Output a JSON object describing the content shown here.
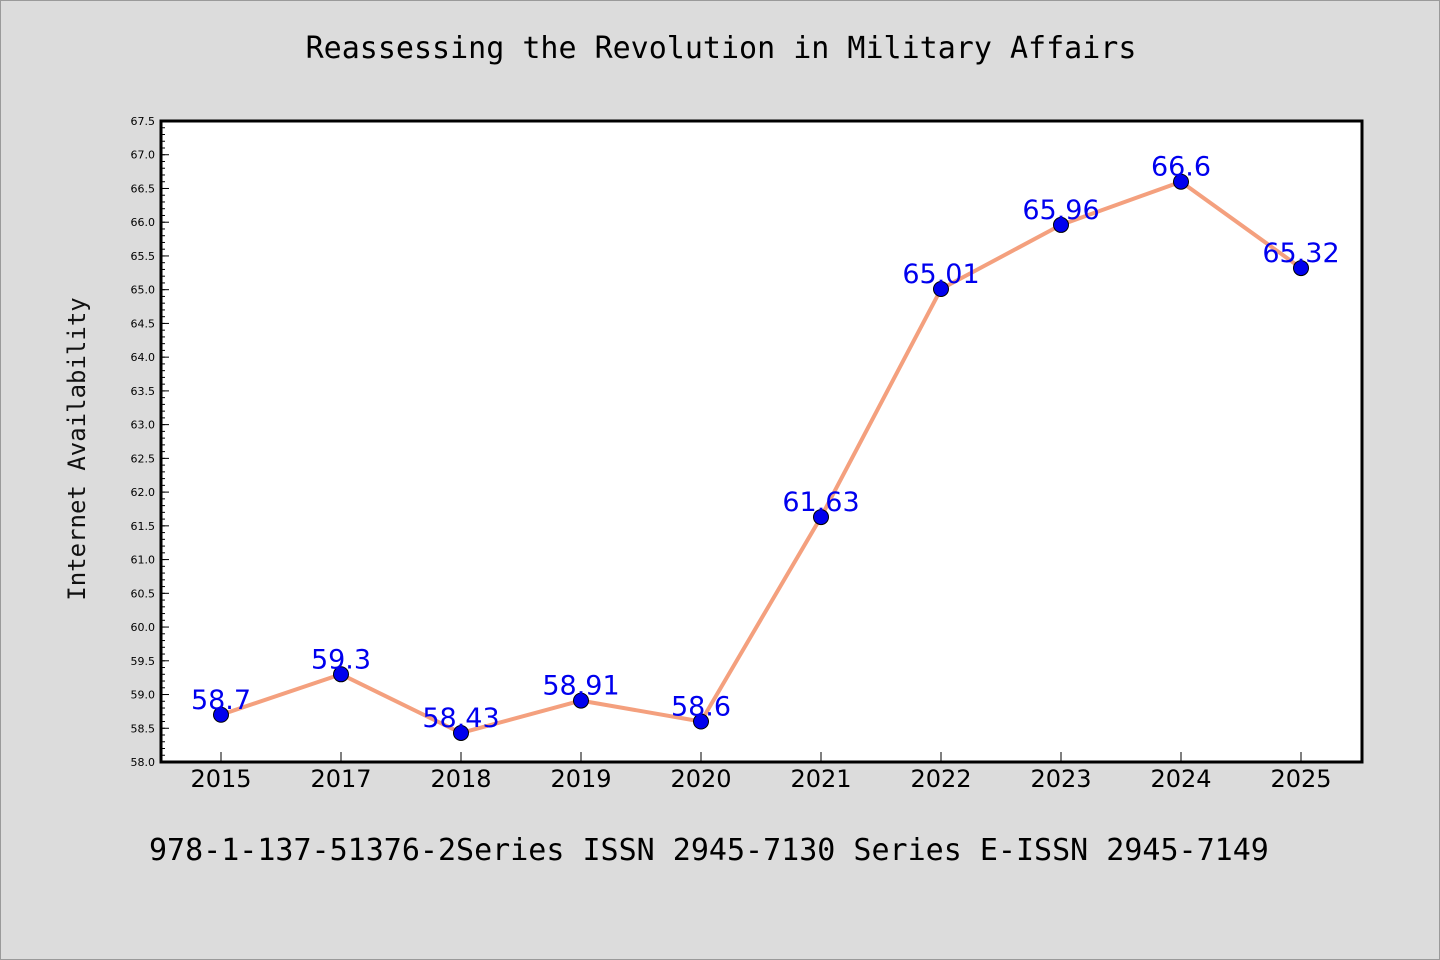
{
  "chart_data": {
    "type": "line",
    "title": "Reassessing the Revolution in Military Affairs",
    "xlabel": "",
    "ylabel": "Internet Availability",
    "categories": [
      "2015",
      "2017",
      "2018",
      "2019",
      "2020",
      "2021",
      "2022",
      "2023",
      "2024",
      "2025"
    ],
    "series": [
      {
        "values": [
          58.7,
          59.3,
          58.43,
          58.91,
          58.6,
          61.63,
          65.01,
          65.96,
          66.6,
          65.32
        ],
        "data_labels": [
          "58.7",
          "59.3",
          "58.43",
          "58.91",
          "58.6",
          "61.63",
          "65.01",
          "65.96",
          "66.6",
          "65.32"
        ],
        "line_color": "#f4a07e",
        "marker_color": "#0000ee"
      }
    ],
    "ylim": [
      58.0,
      67.5
    ],
    "yticks": [
      "58.0",
      "58.5",
      "59.0",
      "59.5",
      "60.0",
      "60.5",
      "61.0",
      "61.5",
      "62.0",
      "62.5",
      "63.0",
      "63.5",
      "64.0",
      "64.5",
      "65.0",
      "65.5",
      "66.0",
      "66.5",
      "67.0",
      "67.5"
    ],
    "grid": false,
    "legend": "none"
  },
  "footer": {
    "text": "978-1-137-51376-2Series ISSN 2945-7130 Series E-ISSN 2945-7149"
  },
  "colors": {
    "background": "#dcdcdc",
    "plot_background": "#ffffff",
    "line": "#f4a07e",
    "marker": "#0000ee",
    "label": "#0000ee"
  }
}
